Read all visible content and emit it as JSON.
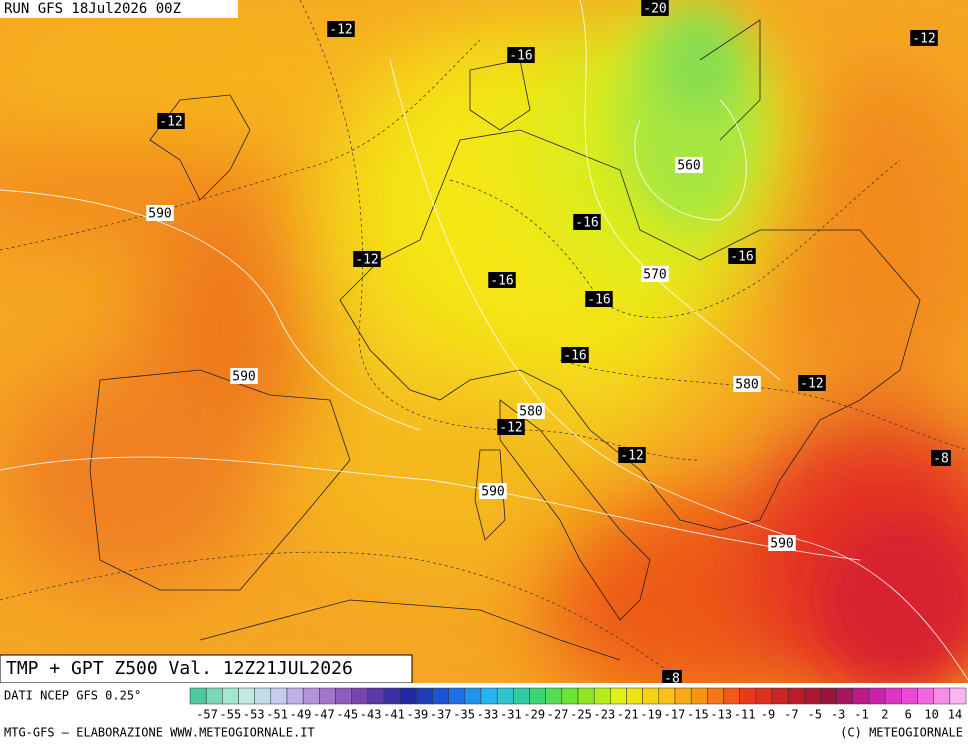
{
  "header": {
    "run": "RUN GFS 18Jul2026 00Z"
  },
  "map_labels": [
    "-20",
    "-12",
    "-12",
    "-16",
    "-12",
    "560",
    "590",
    "-16",
    "-12",
    "-16",
    "-16",
    "570",
    "-16",
    "-16",
    "590",
    "580",
    "-12",
    "580",
    "-12",
    "-12",
    "-8",
    "590",
    "590",
    "-8"
  ],
  "footer": {
    "title": "TMP + GPT Z500 Val. 12Z21JUL2026",
    "source": "DATI NCEP GFS 0.25°",
    "credit": "MTG-GFS — ELABORAZIONE WWW.METEOGIORNALE.IT",
    "copyright": "(C) METEOGIORNALE"
  },
  "colorbar_labels": [
    "-57",
    "-55",
    "-53",
    "-51",
    "-49",
    "-47",
    "-45",
    "-43",
    "-41",
    "-39",
    "-37",
    "-35",
    "-33",
    "-31",
    "-29",
    "-27",
    "-25",
    "-23",
    "-21",
    "-19",
    "-17",
    "-15",
    "-13",
    "-11",
    "-9",
    "-7",
    "-5",
    "-3",
    "-1",
    "2",
    "6",
    "10",
    "14"
  ]
}
